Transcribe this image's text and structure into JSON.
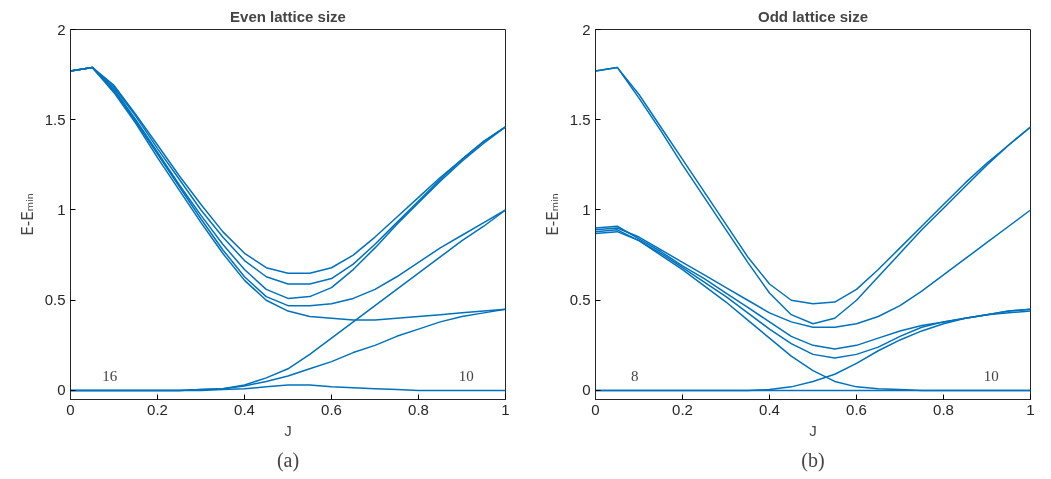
{
  "chart_data": [
    {
      "type": "line",
      "title": "Even lattice size",
      "xlabel": "J",
      "ylabel": "E-Eₘᵢₙ",
      "x": [
        0,
        0.05,
        0.1,
        0.15,
        0.2,
        0.25,
        0.3,
        0.35,
        0.4,
        0.45,
        0.5,
        0.55,
        0.6,
        0.65,
        0.7,
        0.75,
        0.8,
        0.85,
        0.9,
        0.95,
        1
      ],
      "series": [
        {
          "color": "#0072bd",
          "values": [
            1.77,
            1.79,
            1.69,
            1.53,
            1.36,
            1.19,
            1.03,
            0.88,
            0.76,
            0.68,
            0.65,
            0.65,
            0.68,
            0.75,
            0.85,
            0.96,
            1.07,
            1.18,
            1.28,
            1.38,
            1.46
          ]
        },
        {
          "color": "#0072bd",
          "values": [
            1.77,
            1.79,
            1.68,
            1.52,
            1.34,
            1.17,
            1.0,
            0.85,
            0.72,
            0.63,
            0.59,
            0.59,
            0.62,
            0.7,
            0.81,
            0.93,
            1.05,
            1.17,
            1.28,
            1.38,
            1.46
          ]
        },
        {
          "color": "#0072bd",
          "values": [
            1.77,
            1.79,
            1.67,
            1.5,
            1.32,
            1.14,
            0.97,
            0.81,
            0.67,
            0.56,
            0.51,
            0.52,
            0.57,
            0.67,
            0.79,
            0.92,
            1.04,
            1.16,
            1.27,
            1.37,
            1.46
          ]
        },
        {
          "color": "#0072bd",
          "values": [
            1.77,
            1.79,
            1.66,
            1.49,
            1.31,
            1.13,
            0.95,
            0.78,
            0.63,
            0.52,
            0.47,
            0.47,
            0.48,
            0.51,
            0.56,
            0.63,
            0.71,
            0.79,
            0.86,
            0.93,
            1.0
          ]
        },
        {
          "color": "#0072bd",
          "values": [
            1.77,
            1.79,
            1.65,
            1.48,
            1.29,
            1.11,
            0.93,
            0.76,
            0.61,
            0.5,
            0.44,
            0.41,
            0.4,
            0.39,
            0.39,
            0.4,
            0.41,
            0.42,
            0.43,
            0.44,
            0.45
          ]
        },
        {
          "color": "#0072bd",
          "values": [
            0,
            0,
            0,
            0,
            0,
            0,
            0.005,
            0.01,
            0.03,
            0.07,
            0.12,
            0.2,
            0.29,
            0.38,
            0.47,
            0.56,
            0.65,
            0.74,
            0.83,
            0.91,
            1.0
          ]
        },
        {
          "color": "#0072bd",
          "values": [
            0,
            0,
            0,
            0,
            0,
            0,
            0.005,
            0.01,
            0.025,
            0.05,
            0.08,
            0.12,
            0.16,
            0.21,
            0.25,
            0.3,
            0.34,
            0.38,
            0.41,
            0.43,
            0.45
          ]
        },
        {
          "color": "#0072bd",
          "values": [
            0,
            0,
            0,
            0,
            0,
            0,
            0,
            0.005,
            0.01,
            0.02,
            0.03,
            0.03,
            0.02,
            0.015,
            0.01,
            0.005,
            0,
            0,
            0,
            0,
            0
          ]
        }
      ],
      "xlim": [
        0,
        1
      ],
      "ylim": [
        -0.05,
        2
      ],
      "xticks": [
        0,
        0.2,
        0.4,
        0.6,
        0.8,
        1
      ],
      "yticks": [
        0,
        0.5,
        1,
        1.5,
        2
      ],
      "annotations": [
        "16",
        "10",
        "(a)"
      ]
    },
    {
      "type": "line",
      "title": "Odd lattice size",
      "xlabel": "J",
      "ylabel": "E-Eₘᵢₙ",
      "x": [
        0,
        0.05,
        0.1,
        0.15,
        0.2,
        0.25,
        0.3,
        0.35,
        0.4,
        0.45,
        0.5,
        0.55,
        0.6,
        0.65,
        0.7,
        0.75,
        0.8,
        0.85,
        0.9,
        0.95,
        1
      ],
      "series": [
        {
          "color": "#0072bd",
          "values": [
            1.77,
            1.79,
            1.64,
            1.46,
            1.28,
            1.1,
            0.92,
            0.74,
            0.59,
            0.5,
            0.48,
            0.49,
            0.56,
            0.67,
            0.79,
            0.91,
            1.03,
            1.15,
            1.26,
            1.36,
            1.46
          ]
        },
        {
          "color": "#0072bd",
          "values": [
            1.77,
            1.79,
            1.62,
            1.44,
            1.25,
            1.07,
            0.89,
            0.71,
            0.54,
            0.42,
            0.37,
            0.4,
            0.5,
            0.63,
            0.76,
            0.89,
            1.01,
            1.13,
            1.25,
            1.36,
            1.46
          ]
        },
        {
          "color": "#0072bd",
          "values": [
            0.89,
            0.9,
            0.85,
            0.78,
            0.71,
            0.64,
            0.57,
            0.5,
            0.43,
            0.38,
            0.35,
            0.35,
            0.37,
            0.41,
            0.47,
            0.55,
            0.64,
            0.73,
            0.82,
            0.91,
            1.0
          ]
        },
        {
          "color": "#0072bd",
          "values": [
            0.9,
            0.91,
            0.84,
            0.77,
            0.69,
            0.62,
            0.54,
            0.46,
            0.38,
            0.3,
            0.25,
            0.23,
            0.25,
            0.29,
            0.33,
            0.36,
            0.38,
            0.4,
            0.42,
            0.44,
            0.45
          ]
        },
        {
          "color": "#0072bd",
          "values": [
            0.87,
            0.88,
            0.83,
            0.76,
            0.68,
            0.6,
            0.52,
            0.43,
            0.34,
            0.26,
            0.2,
            0.18,
            0.2,
            0.24,
            0.3,
            0.35,
            0.38,
            0.4,
            0.42,
            0.43,
            0.44
          ]
        },
        {
          "color": "#0072bd",
          "values": [
            0.88,
            0.89,
            0.83,
            0.75,
            0.67,
            0.58,
            0.49,
            0.39,
            0.29,
            0.19,
            0.11,
            0.05,
            0.02,
            0.01,
            0.005,
            0,
            0,
            0,
            0,
            0,
            0
          ]
        },
        {
          "color": "#0072bd",
          "values": [
            0,
            0,
            0,
            0,
            0,
            0,
            0,
            0,
            0.005,
            0.02,
            0.05,
            0.09,
            0.15,
            0.22,
            0.28,
            0.33,
            0.37,
            0.4,
            0.42,
            0.44,
            0.45
          ]
        },
        {
          "color": "#0072bd",
          "values": [
            0,
            0,
            0,
            0,
            0,
            0,
            0,
            0,
            0,
            0,
            0,
            0,
            0,
            0,
            0,
            0,
            0,
            0,
            0,
            0,
            0
          ]
        }
      ],
      "xlim": [
        0,
        1
      ],
      "ylim": [
        -0.05,
        2
      ],
      "xticks": [
        0,
        0.2,
        0.4,
        0.6,
        0.8,
        1
      ],
      "yticks": [
        0,
        0.5,
        1,
        1.5,
        2
      ],
      "annotations": [
        "8",
        "10",
        "(b)"
      ]
    }
  ]
}
